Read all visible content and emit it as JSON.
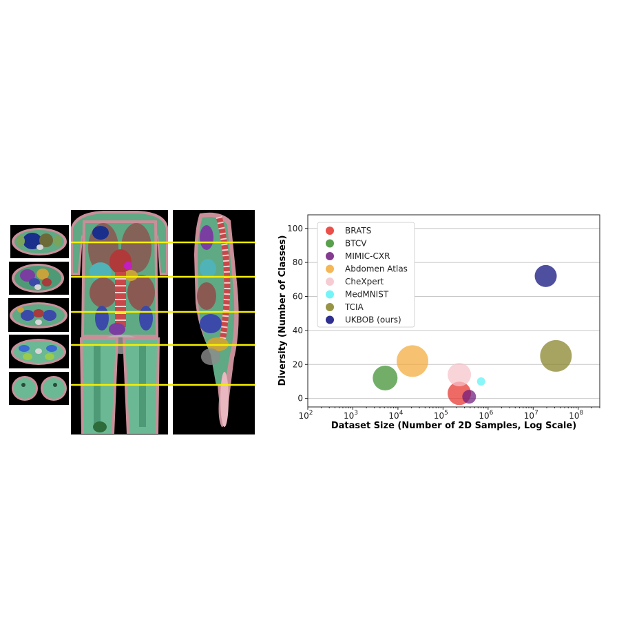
{
  "figure": {
    "panels": [
      "axial-slices",
      "coronal-view",
      "sagittal-view",
      "scatter-chart"
    ]
  },
  "chart_data": {
    "type": "scatter",
    "title": "",
    "xlabel": "Dataset Size (Number of 2D Samples, Log Scale)",
    "ylabel": "Diversity (Number of Classes)",
    "x_scale": "log",
    "xlim": [
      100,
      300000000
    ],
    "ylim": [
      -5,
      108
    ],
    "x_ticks": [
      {
        "value": 100,
        "base": "10",
        "exp": "2"
      },
      {
        "value": 1000,
        "base": "10",
        "exp": "3"
      },
      {
        "value": 10000,
        "base": "10",
        "exp": "4"
      },
      {
        "value": 100000,
        "base": "10",
        "exp": "5"
      },
      {
        "value": 1000000,
        "base": "10",
        "exp": "6"
      },
      {
        "value": 10000000,
        "base": "10",
        "exp": "7"
      },
      {
        "value": 100000000,
        "base": "10",
        "exp": "8"
      }
    ],
    "y_ticks": [
      "0",
      "20",
      "40",
      "60",
      "80",
      "100"
    ],
    "grid": "horizontal",
    "legend_position": "top-left",
    "series": [
      {
        "name": "BRATS",
        "color": "#e8302a",
        "x": 230000,
        "y": 3,
        "size": 17
      },
      {
        "name": "BTCV",
        "color": "#3c8f2e",
        "x": 5200,
        "y": 12,
        "size": 18
      },
      {
        "name": "MIMIC-CXR",
        "color": "#6e1a7d",
        "x": 380000,
        "y": 1,
        "size": 10
      },
      {
        "name": "Abdomen Atlas",
        "color": "#f2aa3a",
        "x": 21000,
        "y": 22,
        "size": 23
      },
      {
        "name": "CheXpert",
        "color": "#f5c3cb",
        "x": 230000,
        "y": 14,
        "size": 17
      },
      {
        "name": "MedMNIST",
        "color": "#5cf2f5",
        "x": 700000,
        "y": 10,
        "size": 6
      },
      {
        "name": "TCIA",
        "color": "#858124",
        "x": 32000000,
        "y": 25,
        "size": 23
      },
      {
        "name": "UKBOB (ours)",
        "color": "#0b0b7b",
        "x": 19000000,
        "y": 72,
        "size": 16
      }
    ]
  }
}
